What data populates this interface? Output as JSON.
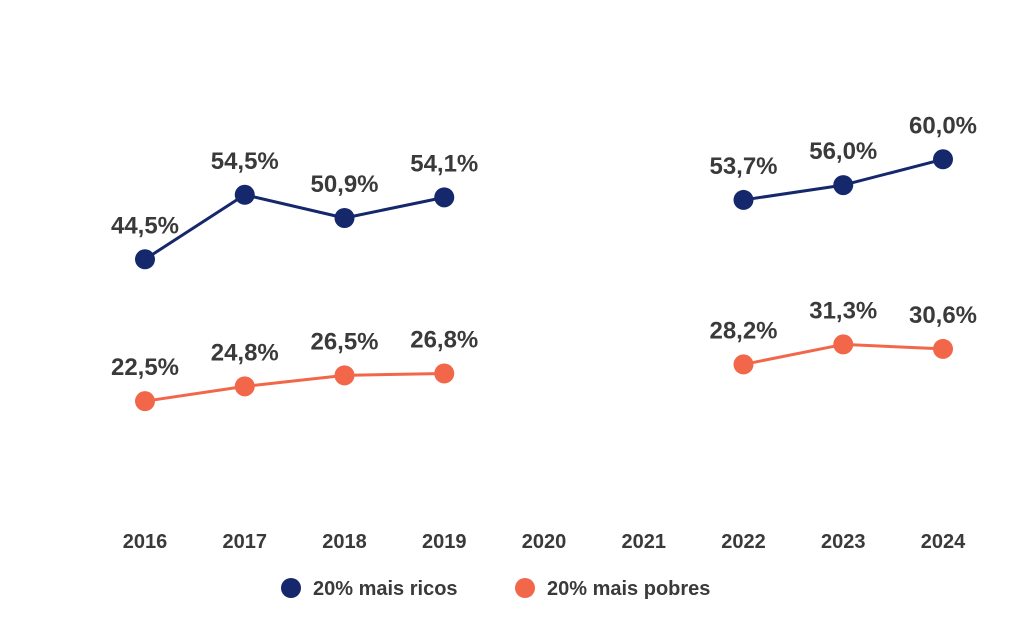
{
  "chart_data": {
    "type": "line",
    "title": "",
    "xlabel": "",
    "ylabel": "",
    "grid": false,
    "legend_position": "bottom",
    "categories": [
      "2016",
      "2017",
      "2018",
      "2019",
      "2020",
      "2021",
      "2022",
      "2023",
      "2024"
    ],
    "ylim": [
      0,
      100
    ],
    "series": [
      {
        "name": "20% mais ricos",
        "color": "#14286b",
        "values": [
          44.5,
          54.5,
          50.9,
          54.1,
          null,
          null,
          53.7,
          56.0,
          60.0
        ],
        "labels": [
          "44,5%",
          "54,5%",
          "50,9%",
          "54,1%",
          null,
          null,
          "53,7%",
          "56,0%",
          "60,0%"
        ]
      },
      {
        "name": "20% mais pobres",
        "color": "#f2674a",
        "values": [
          22.5,
          24.8,
          26.5,
          26.8,
          null,
          null,
          28.2,
          31.3,
          30.6
        ],
        "labels": [
          "22,5%",
          "24,8%",
          "26,5%",
          "26,8%",
          null,
          null,
          "28,2%",
          "31,3%",
          "30,6%"
        ]
      }
    ]
  }
}
